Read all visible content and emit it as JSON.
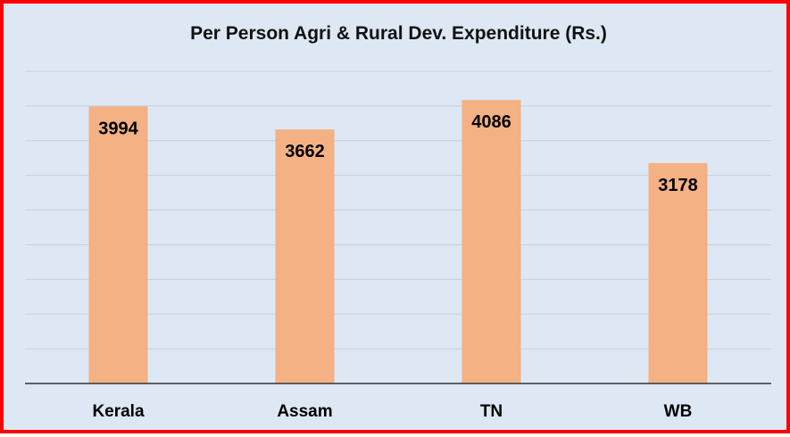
{
  "chart_data": {
    "type": "bar",
    "title": "Per Person Agri & Rural Dev. Expenditure (Rs.)",
    "categories": [
      "Kerala",
      "Assam",
      "TN",
      "WB"
    ],
    "values": [
      3994,
      3662,
      4086,
      3178
    ],
    "xlabel": "",
    "ylabel": "",
    "ylim": [
      0,
      4500
    ],
    "grid": true,
    "legend": "none",
    "colors": {
      "bar": "#f4b183",
      "background": "#dde8f4",
      "border": "#ff0000",
      "grid": "#c8cfd8",
      "axis": "#333333"
    }
  }
}
